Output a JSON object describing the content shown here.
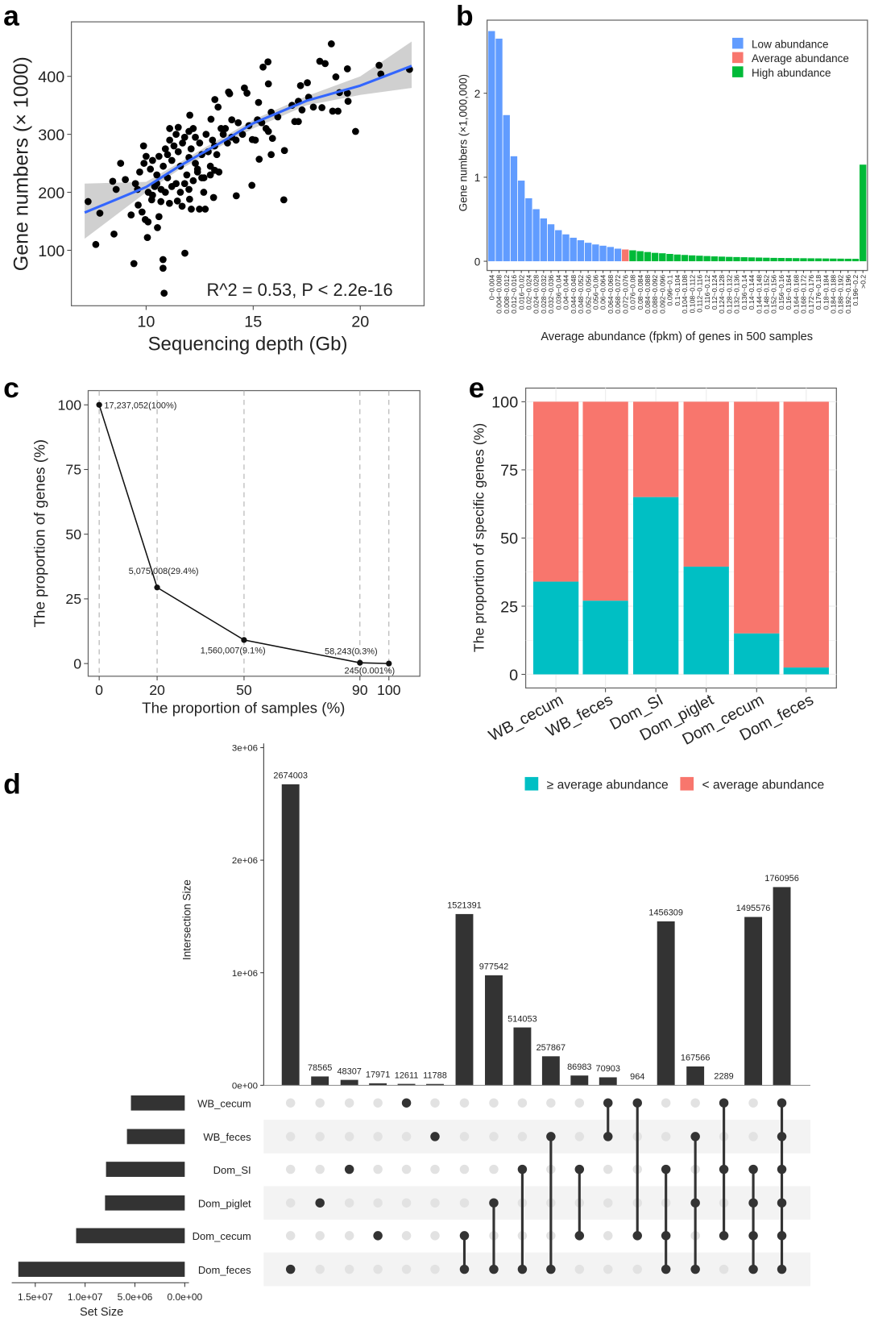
{
  "panel_labels": {
    "a": "a",
    "b": "b",
    "c": "c",
    "d": "d",
    "e": "e"
  },
  "chart_data": [
    {
      "panel": "a",
      "type": "scatter",
      "xlabel": "Sequencing depth (Gb)",
      "ylabel": "Gene numbers (× 1000)",
      "xticks": [
        10,
        15,
        20
      ],
      "yticks": [
        100,
        200,
        300,
        400
      ],
      "xlim": [
        6.51,
        22.98
      ],
      "ylim": [
        4.3,
        494
      ],
      "annotation": "R^2 = 0.53, P < 2.2e-16",
      "point_color": "#000000",
      "fit_color": "#3366ff",
      "band_color": "#c8c8c8",
      "points": [
        [
          7.29,
          184
        ],
        [
          7.84,
          164
        ],
        [
          7.65,
          110
        ],
        [
          8.5,
          128
        ],
        [
          8.81,
          250
        ],
        [
          8.44,
          219
        ],
        [
          8.6,
          205
        ],
        [
          9.03,
          222
        ],
        [
          9.43,
          77
        ],
        [
          9.3,
          161
        ],
        [
          9.63,
          178
        ],
        [
          9.81,
          166
        ],
        [
          9.96,
          153
        ],
        [
          10.09,
          149
        ],
        [
          10.06,
          122
        ],
        [
          9.88,
          280
        ],
        [
          10.26,
          187
        ],
        [
          10.53,
          139
        ],
        [
          10.6,
          158
        ],
        [
          10.79,
          84
        ],
        [
          10.79,
          69
        ],
        [
          10.84,
          26
        ],
        [
          11.81,
          95
        ],
        [
          10.69,
          184
        ],
        [
          11.09,
          181
        ],
        [
          11.46,
          185
        ],
        [
          11.68,
          176
        ],
        [
          12.11,
          171
        ],
        [
          12.49,
          171
        ],
        [
          12.76,
          171
        ],
        [
          12.03,
          188
        ],
        [
          12.69,
          200
        ],
        [
          13.15,
          191
        ],
        [
          12.04,
          333
        ],
        [
          13.21,
          360
        ],
        [
          13.36,
          347
        ],
        [
          13.03,
          326
        ],
        [
          13.85,
          373
        ],
        [
          13.9,
          370
        ],
        [
          14.59,
          380
        ],
        [
          14.71,
          371
        ],
        [
          14.21,
          194
        ],
        [
          14.94,
          212
        ],
        [
          15.25,
          355
        ],
        [
          15.46,
          416
        ],
        [
          15.69,
          425
        ],
        [
          15.71,
          387
        ],
        [
          15.84,
          338
        ],
        [
          16.15,
          330
        ],
        [
          15.28,
          257
        ],
        [
          15.84,
          265
        ],
        [
          16.46,
          272
        ],
        [
          16.43,
          187
        ],
        [
          15.71,
          305
        ],
        [
          15.9,
          293
        ],
        [
          14.96,
          291
        ],
        [
          16.81,
          350
        ],
        [
          17.11,
          357
        ],
        [
          17.28,
          342
        ],
        [
          16.94,
          322
        ],
        [
          17.11,
          322
        ],
        [
          17.21,
          384
        ],
        [
          17.53,
          389
        ],
        [
          17.59,
          364
        ],
        [
          17.81,
          347
        ],
        [
          18.21,
          346
        ],
        [
          18.11,
          426
        ],
        [
          18.36,
          422
        ],
        [
          18.65,
          456
        ],
        [
          18.86,
          399
        ],
        [
          18.71,
          340
        ],
        [
          18.96,
          340
        ],
        [
          19.03,
          372
        ],
        [
          19.4,
          413
        ],
        [
          19.4,
          371
        ],
        [
          19.43,
          357
        ],
        [
          19.78,
          305
        ],
        [
          20.88,
          419
        ],
        [
          20.96,
          404
        ],
        [
          22.3,
          412
        ],
        [
          10.2,
          240
        ],
        [
          10.3,
          255
        ],
        [
          10.5,
          230
        ],
        [
          10.4,
          210
        ],
        [
          10.6,
          262
        ],
        [
          10.8,
          245
        ],
        [
          10.9,
          275
        ],
        [
          11.0,
          265
        ],
        [
          11.1,
          290
        ],
        [
          11.2,
          255
        ],
        [
          11.3,
          280
        ],
        [
          11.4,
          300
        ],
        [
          11.5,
          270
        ],
        [
          11.6,
          245
        ],
        [
          11.7,
          285
        ],
        [
          11.8,
          295
        ],
        [
          11.9,
          230
        ],
        [
          12.0,
          260
        ],
        [
          12.1,
          275
        ],
        [
          12.2,
          310
        ],
        [
          12.3,
          250
        ],
        [
          12.4,
          240
        ],
        [
          12.5,
          285
        ],
        [
          12.6,
          265
        ],
        [
          12.7,
          225
        ],
        [
          12.8,
          300
        ],
        [
          12.9,
          270
        ],
        [
          13.0,
          245
        ],
        [
          13.1,
          290
        ],
        [
          13.2,
          280
        ],
        [
          13.3,
          265
        ],
        [
          13.4,
          235
        ],
        [
          13.5,
          310
        ],
        [
          13.6,
          300
        ],
        [
          13.8,
          285
        ],
        [
          14.0,
          295
        ],
        [
          14.2,
          290
        ],
        [
          14.5,
          300
        ],
        [
          14.8,
          315
        ],
        [
          10.1,
          200
        ],
        [
          10.3,
          195
        ],
        [
          10.5,
          215
        ],
        [
          10.7,
          205
        ],
        [
          10.9,
          200
        ],
        [
          11.0,
          225
        ],
        [
          11.2,
          210
        ],
        [
          11.4,
          215
        ],
        [
          11.6,
          200
        ],
        [
          11.8,
          215
        ],
        [
          12.0,
          205
        ],
        [
          12.2,
          220
        ],
        [
          12.4,
          235
        ],
        [
          12.6,
          225
        ],
        [
          11.1,
          310
        ],
        [
          11.5,
          312
        ],
        [
          12.0,
          305
        ],
        [
          12.3,
          295
        ],
        [
          9.7,
          235
        ],
        [
          9.9,
          250
        ],
        [
          9.5,
          215
        ],
        [
          9.6,
          205
        ],
        [
          10.0,
          262
        ],
        [
          13.0,
          230
        ],
        [
          13.2,
          238
        ],
        [
          14.3,
          320
        ],
        [
          14.0,
          325
        ],
        [
          13.7,
          310
        ],
        [
          15.2,
          325
        ],
        [
          15.6,
          310
        ],
        [
          15.1,
          290
        ],
        [
          15.4,
          320
        ]
      ],
      "fit": {
        "x": [
          7.13,
          10,
          11.5,
          12.5,
          13.5,
          15,
          17.5,
          20,
          22.4
        ],
        "y": [
          165,
          209,
          244,
          265,
          286,
          319,
          358,
          384,
          418
        ],
        "lower": [
          120,
          200,
          238,
          258,
          280,
          310,
          350,
          368,
          380
        ],
        "upper": [
          215,
          218,
          250,
          272,
          293,
          325,
          366,
          400,
          460
        ]
      }
    },
    {
      "panel": "b",
      "type": "bar",
      "xlabel": "Average abundance (fpkm) of genes in 500 samples",
      "ylabel": "Gene numbers (×1,000,000)",
      "yticks": [
        0,
        1,
        2
      ],
      "ylim": [
        -0.11,
        2.87
      ],
      "categories": [
        "0~0.004",
        "0.004~0.008",
        "0.008~0.012",
        "0.012~0.016",
        "0.016~0.02",
        "0.02~0.024",
        "0.024~0.028",
        "0.028~0.032",
        "0.032~0.036",
        "0.036~0.04",
        "0.04~0.044",
        "0.044~0.048",
        "0.048~0.052",
        "0.052~0.056",
        "0.056~0.06",
        "0.06~0.064",
        "0.064~0.068",
        "0.068~0.072",
        "0.072~0.076",
        "0.076~0.08",
        "0.08~0.084",
        "0.084~0.088",
        "0.088~0.092",
        "0.092~0.096",
        "0.096~0.1",
        "0.1~0.104",
        "0.104~0.108",
        "0.108~0.112",
        "0.112~0.116",
        "0.116~0.12",
        "0.12~0.124",
        "0.124~0.128",
        "0.128~0.132",
        "0.132~0.136",
        "0.136~0.14",
        "0.14~0.144",
        "0.144~0.148",
        "0.148~0.152",
        "0.152~0.156",
        "0.156~0.16",
        "0.16~0.164",
        "0.164~0.168",
        "0.168~0.172",
        "0.172~0.176",
        "0.176~0.18",
        "0.18~0.184",
        "0.184~0.188",
        "0.188~0.192",
        "0.192~0.196",
        "0.196~0.2",
        ">0.2"
      ],
      "values": [
        2.74,
        2.65,
        1.74,
        1.25,
        0.96,
        0.75,
        0.62,
        0.51,
        0.44,
        0.37,
        0.32,
        0.28,
        0.25,
        0.22,
        0.2,
        0.185,
        0.17,
        0.15,
        0.14,
        0.13,
        0.12,
        0.11,
        0.1,
        0.095,
        0.087,
        0.08,
        0.075,
        0.07,
        0.066,
        0.062,
        0.058,
        0.055,
        0.052,
        0.05,
        0.048,
        0.046,
        0.044,
        0.042,
        0.04,
        0.039,
        0.038,
        0.037,
        0.036,
        0.035,
        0.034,
        0.033,
        0.032,
        0.031,
        0.03,
        0.029,
        1.15
      ],
      "legend": [
        {
          "label": "Low abundance",
          "color": "#619cff",
          "bins": [
            0,
            17
          ]
        },
        {
          "label": "Average abundance",
          "color": "#f8766d",
          "bins": [
            18,
            18
          ]
        },
        {
          "label": "High abundance",
          "color": "#00ba38",
          "bins": [
            19,
            50
          ]
        }
      ],
      "legend_position": "top-right"
    },
    {
      "panel": "c",
      "type": "line",
      "xlabel": "The proportion of samples (%)",
      "ylabel": "The proportion of genes (%)",
      "xticks": [
        0,
        20,
        50,
        90,
        100
      ],
      "yticks": [
        0,
        25,
        50,
        75,
        100
      ],
      "xlim": [
        -3.8,
        110.7
      ],
      "ylim": [
        -4.9,
        105.5
      ],
      "x": [
        0,
        20,
        50,
        90,
        100
      ],
      "y": [
        100,
        29.4,
        9.1,
        0.3,
        0.001
      ],
      "labels": [
        "17,237,052(100%)",
        "5,075,008(29.4%)",
        "1,560,007(9.1%)",
        "58,243(0.3%)",
        "245(0.001%)"
      ]
    },
    {
      "panel": "e",
      "type": "bar",
      "stacked": true,
      "ylabel": "The proportion of specific genes (%)",
      "yticks": [
        0,
        25,
        50,
        75,
        100
      ],
      "ylim": [
        -5,
        105
      ],
      "categories": [
        "WB_cecum",
        "WB_feces",
        "Dom_SI",
        "Dom_piglet",
        "Dom_cecum",
        "Dom_feces"
      ],
      "series": [
        {
          "name": "≥ average abundance",
          "color": "#00bfc4",
          "values": [
            34,
            27,
            65,
            39.5,
            15,
            2.5
          ]
        },
        {
          "name": "< average abundance",
          "color": "#f8766d",
          "values": [
            66,
            73,
            35,
            60.5,
            85,
            97.5
          ]
        }
      ],
      "legend_position": "bottom"
    },
    {
      "panel": "d",
      "type": "upset",
      "ylabel": "Intersection Size",
      "yticks": [
        "0e+00",
        "1e+06",
        "2e+06",
        "3e+06"
      ],
      "ytick_values": [
        0,
        1000000,
        2000000,
        3000000
      ],
      "set_size_label": "Set Size",
      "set_size_ticks": [
        "0.0e+00",
        "5.0e+06",
        "1.0e+07",
        "1.5e+07"
      ],
      "set_size_tick_values": [
        0,
        5000000,
        10000000,
        15000000
      ],
      "sets": [
        "WB_cecum",
        "WB_feces",
        "Dom_SI",
        "Dom_piglet",
        "Dom_cecum",
        "Dom_feces"
      ],
      "set_sizes": [
        5400000,
        5800000,
        7900000,
        8000000,
        10900000,
        16700000
      ],
      "intersections": [
        {
          "size": 2674003,
          "label": "2674003",
          "sets": [
            "Dom_feces"
          ]
        },
        {
          "size": 78565,
          "label": "78565",
          "sets": [
            "Dom_piglet"
          ]
        },
        {
          "size": 48307,
          "label": "48307",
          "sets": [
            "Dom_SI"
          ]
        },
        {
          "size": 17971,
          "label": "17971",
          "sets": [
            "Dom_cecum"
          ]
        },
        {
          "size": 12611,
          "label": "12611",
          "sets": [
            "WB_cecum"
          ]
        },
        {
          "size": 11788,
          "label": "11788",
          "sets": [
            "WB_feces"
          ]
        },
        {
          "size": 1521391,
          "label": "1521391",
          "sets": [
            "Dom_cecum",
            "Dom_feces"
          ]
        },
        {
          "size": 977542,
          "label": "977542",
          "sets": [
            "Dom_piglet",
            "Dom_feces"
          ]
        },
        {
          "size": 514053,
          "label": "514053",
          "sets": [
            "Dom_SI",
            "Dom_feces"
          ]
        },
        {
          "size": 257867,
          "label": "257867",
          "sets": [
            "WB_feces",
            "Dom_feces"
          ]
        },
        {
          "size": 86983,
          "label": "86983",
          "sets": [
            "Dom_SI",
            "Dom_cecum"
          ]
        },
        {
          "size": 70903,
          "label": "70903",
          "sets": [
            "WB_cecum",
            "WB_feces"
          ]
        },
        {
          "size": 964,
          "label": "964",
          "sets": [
            "WB_cecum",
            "Dom_cecum"
          ]
        },
        {
          "size": 1456309,
          "label": "1456309",
          "sets": [
            "Dom_SI",
            "Dom_cecum",
            "Dom_feces"
          ]
        },
        {
          "size": 167566,
          "label": "167566",
          "sets": [
            "WB_feces",
            "Dom_piglet",
            "Dom_feces"
          ]
        },
        {
          "size": 2289,
          "label": "2289",
          "sets": [
            "WB_cecum",
            "Dom_SI",
            "Dom_cecum"
          ]
        },
        {
          "size": 1495576,
          "label": "1495576",
          "sets": [
            "Dom_SI",
            "Dom_piglet",
            "Dom_cecum",
            "Dom_feces"
          ]
        },
        {
          "size": 1760956,
          "label": "1760956",
          "sets": [
            "WB_cecum",
            "WB_feces",
            "Dom_SI",
            "Dom_piglet",
            "Dom_cecum",
            "Dom_feces"
          ]
        }
      ],
      "bar_color": "#333333"
    }
  ]
}
